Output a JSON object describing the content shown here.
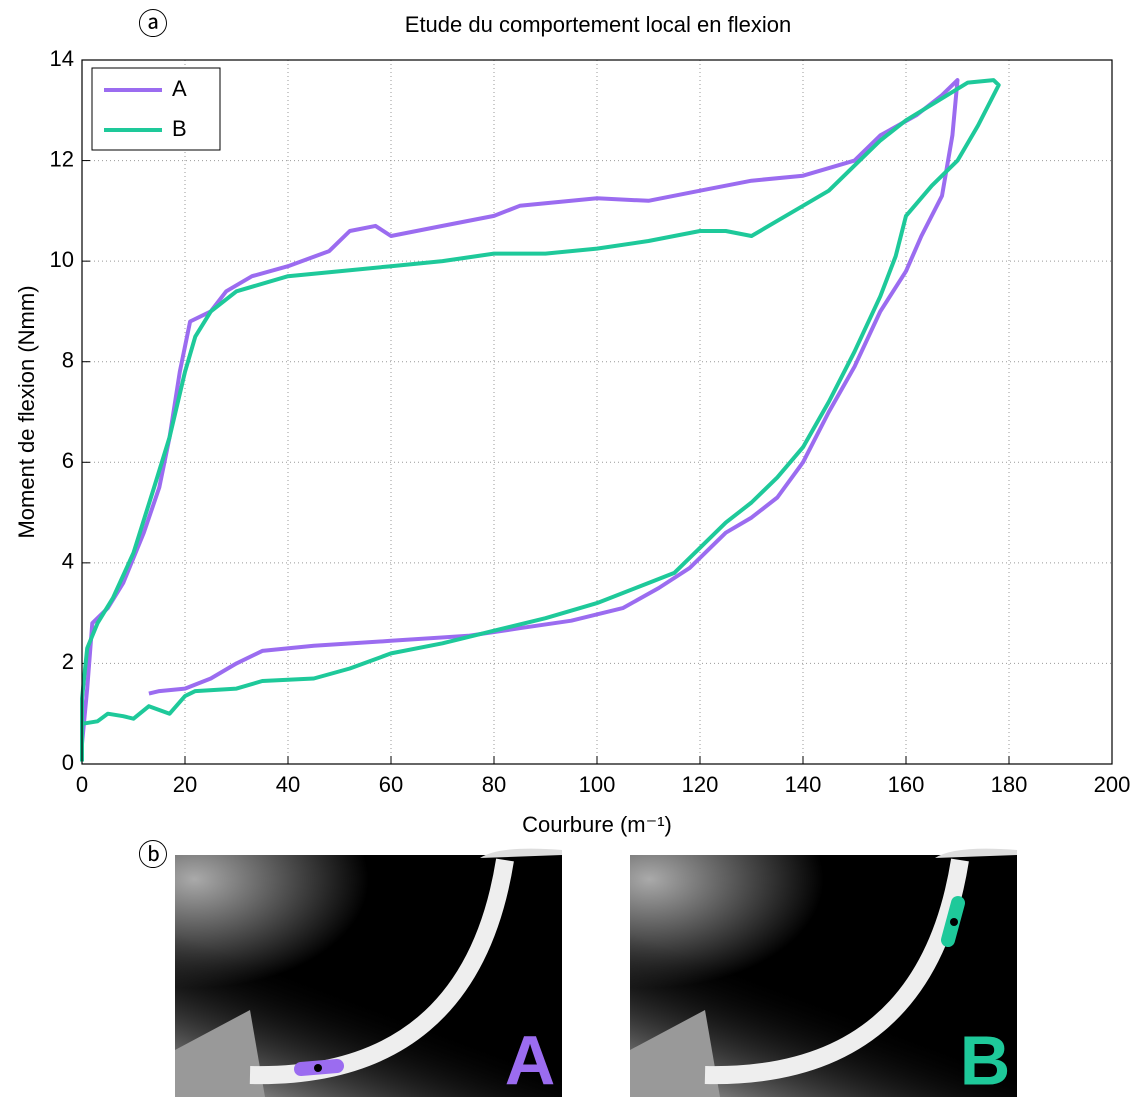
{
  "chart_data": {
    "type": "line",
    "title": "Etude du comportement local en flexion",
    "panel_labels": [
      "ⓐ",
      "ⓑ"
    ],
    "xlabel": "Courbure (m⁻¹)",
    "ylabel": "Moment de flexion (Nmm)",
    "xlim": [
      0,
      200
    ],
    "xticks": [
      0,
      20,
      40,
      60,
      80,
      100,
      120,
      140,
      160,
      180,
      200
    ],
    "ylim": [
      0,
      14
    ],
    "yticks": [
      0,
      2,
      4,
      6,
      8,
      10,
      12,
      14
    ],
    "grid": true,
    "legend": "upper left",
    "series": [
      {
        "name": "A",
        "color": "#9b6cf0",
        "x": [
          0,
          1,
          2,
          5,
          8,
          12,
          15,
          17,
          19,
          21,
          25,
          28,
          33,
          40,
          48,
          52,
          57,
          60,
          70,
          80,
          85,
          100,
          110,
          120,
          130,
          140,
          150,
          155,
          162,
          167,
          170,
          169,
          167,
          163,
          160,
          155,
          150,
          145,
          140,
          135,
          130,
          125,
          118,
          112,
          105,
          95,
          85,
          75,
          60,
          45,
          35,
          30,
          25,
          20,
          15,
          13
        ],
        "values": [
          0.4,
          1.5,
          2.8,
          3.1,
          3.6,
          4.6,
          5.5,
          6.5,
          7.8,
          8.8,
          9.0,
          9.4,
          9.7,
          9.9,
          10.2,
          10.6,
          10.7,
          10.5,
          10.7,
          10.9,
          11.1,
          11.25,
          11.2,
          11.4,
          11.6,
          11.7,
          12.0,
          12.5,
          12.9,
          13.3,
          13.6,
          12.5,
          11.3,
          10.5,
          9.8,
          9.0,
          7.9,
          7.0,
          6.0,
          5.3,
          4.9,
          4.6,
          3.9,
          3.5,
          3.1,
          2.85,
          2.7,
          2.55,
          2.45,
          2.35,
          2.25,
          2.0,
          1.7,
          1.5,
          1.45,
          1.4
        ]
      },
      {
        "name": "B",
        "color": "#1ec99a",
        "x": [
          0,
          0,
          3,
          5,
          8,
          10,
          13,
          17,
          20,
          22,
          30,
          35,
          45,
          52,
          60,
          70,
          80,
          90,
          100,
          110,
          115,
          120,
          125,
          130,
          135,
          140,
          145,
          150,
          155,
          158,
          160,
          165,
          170,
          174,
          178,
          177,
          172,
          168,
          160,
          155,
          150,
          145,
          140,
          130,
          125,
          120,
          110,
          100,
          90,
          80,
          70,
          60,
          50,
          40,
          30,
          25,
          22,
          20,
          17,
          14,
          10,
          6,
          3,
          1,
          0,
          0
        ],
        "values": [
          0.05,
          0.8,
          0.85,
          1.0,
          0.95,
          0.9,
          1.15,
          1.0,
          1.35,
          1.45,
          1.5,
          1.65,
          1.7,
          1.9,
          2.2,
          2.4,
          2.65,
          2.9,
          3.2,
          3.6,
          3.8,
          4.3,
          4.8,
          5.2,
          5.7,
          6.3,
          7.2,
          8.2,
          9.3,
          10.1,
          10.9,
          11.5,
          12.0,
          12.7,
          13.5,
          13.6,
          13.55,
          13.3,
          12.8,
          12.4,
          11.9,
          11.4,
          11.1,
          10.5,
          10.6,
          10.6,
          10.4,
          10.25,
          10.15,
          10.15,
          10.0,
          9.9,
          9.8,
          9.7,
          9.4,
          9.0,
          8.5,
          7.8,
          6.5,
          5.5,
          4.2,
          3.3,
          2.8,
          2.3,
          1.3,
          0.05
        ]
      }
    ]
  }
}
